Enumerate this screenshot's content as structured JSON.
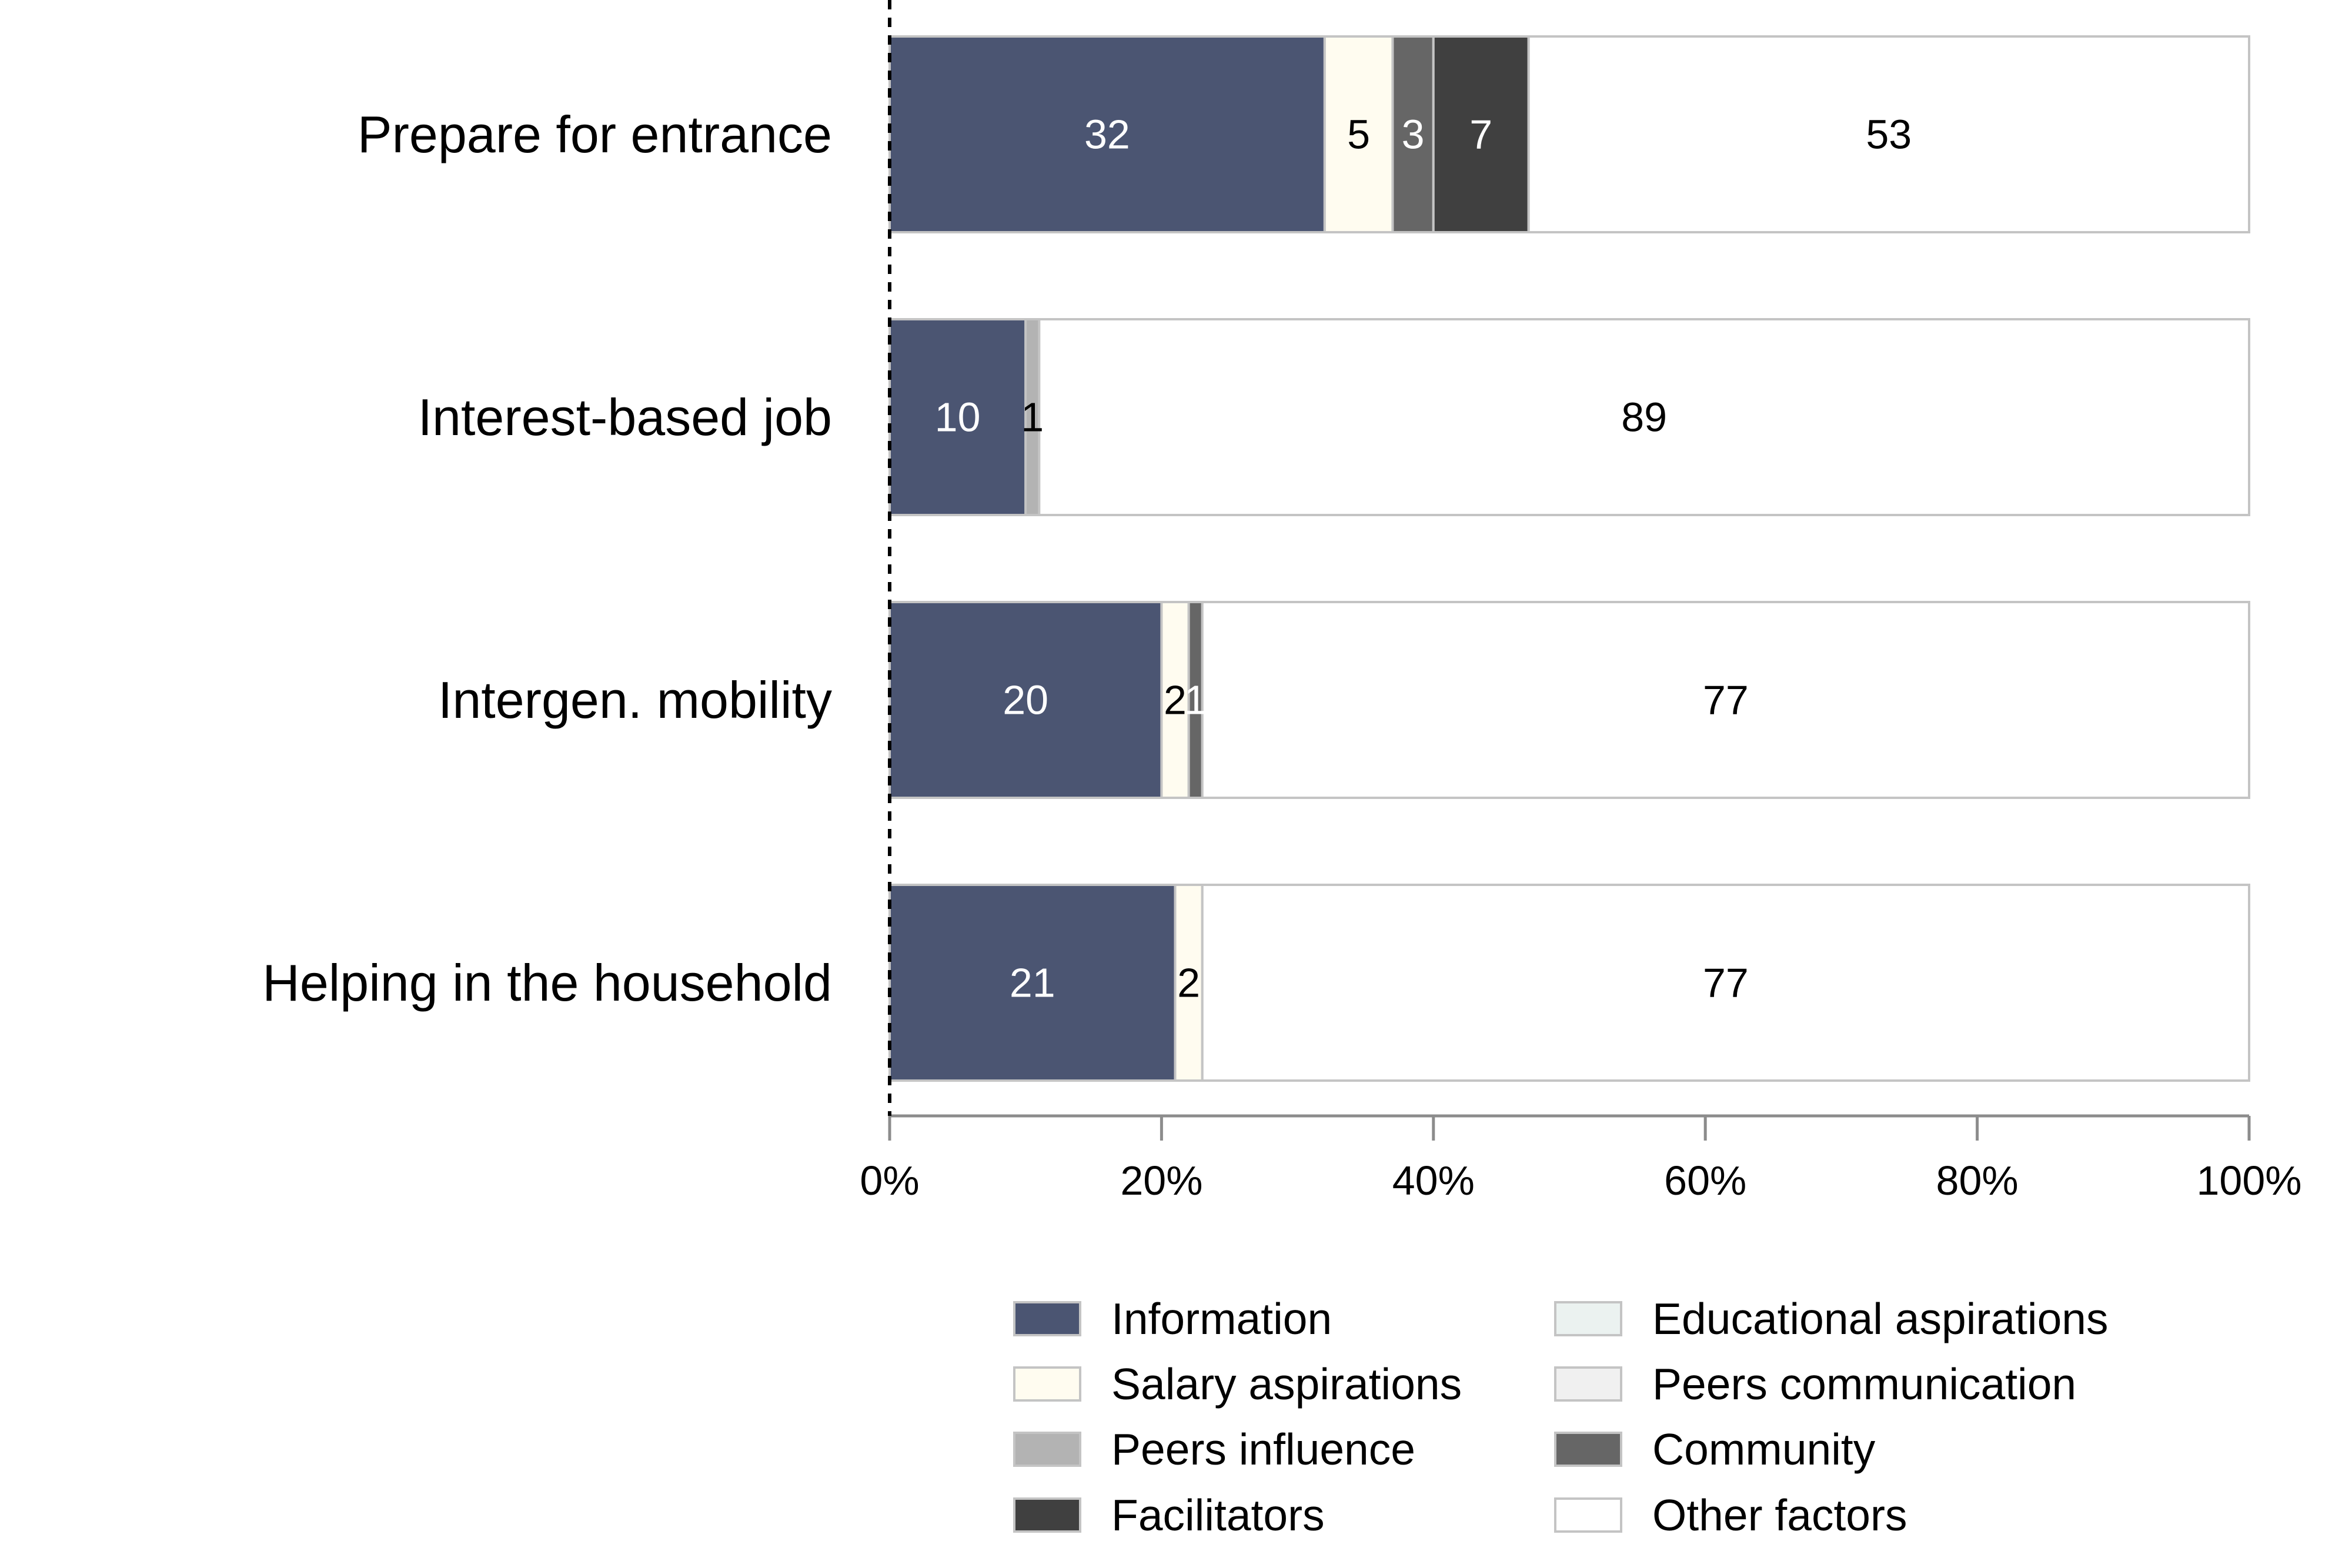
{
  "chart_data": {
    "type": "bar",
    "orientation": "horizontal",
    "stacked": true,
    "title": "",
    "xlabel": "",
    "ylabel": "",
    "xlim": [
      0,
      100
    ],
    "x_ticks": [
      "0%",
      "20%",
      "40%",
      "60%",
      "80%",
      "100%"
    ],
    "categories": [
      "Prepare for entrance",
      "Interest-based job",
      "Intergen. mobility",
      "Helping in the household"
    ],
    "series": [
      {
        "name": "Information",
        "color": "#4b5572",
        "values": [
          32,
          10,
          20,
          21
        ]
      },
      {
        "name": "Salary aspirations",
        "color": "#fffcf0",
        "values": [
          5,
          0,
          2,
          2
        ]
      },
      {
        "name": "Peers influence",
        "color": "#b3b3b3",
        "values": [
          0,
          1,
          0,
          0
        ]
      },
      {
        "name": "Facilitators",
        "color": "#404040",
        "values": [
          7,
          0,
          0,
          0
        ]
      },
      {
        "name": "Educational aspirations",
        "color": "#ebf2f0",
        "values": [
          0,
          0,
          0,
          0
        ]
      },
      {
        "name": "Peers communication",
        "color": "#f0f0f0",
        "values": [
          0,
          0,
          0,
          0
        ]
      },
      {
        "name": "Community",
        "color": "#666666",
        "values": [
          3,
          0,
          1,
          0
        ]
      },
      {
        "name": "Other factors",
        "color": "#ffffff",
        "values": [
          53,
          89,
          77,
          77
        ]
      }
    ],
    "segment_order": [
      "Information",
      "Salary aspirations",
      "Peers influence",
      "Educational aspirations",
      "Peers communication",
      "Community",
      "Facilitators",
      "Other factors"
    ],
    "reference_line": {
      "x": 0,
      "style": "dashed"
    },
    "legend": {
      "position": "bottom-right",
      "columns": 2,
      "order": [
        "Information",
        "Educational aspirations",
        "Salary aspirations",
        "Peers communication",
        "Peers influence",
        "Community",
        "Facilitators",
        "Other factors"
      ]
    },
    "grid": false
  }
}
